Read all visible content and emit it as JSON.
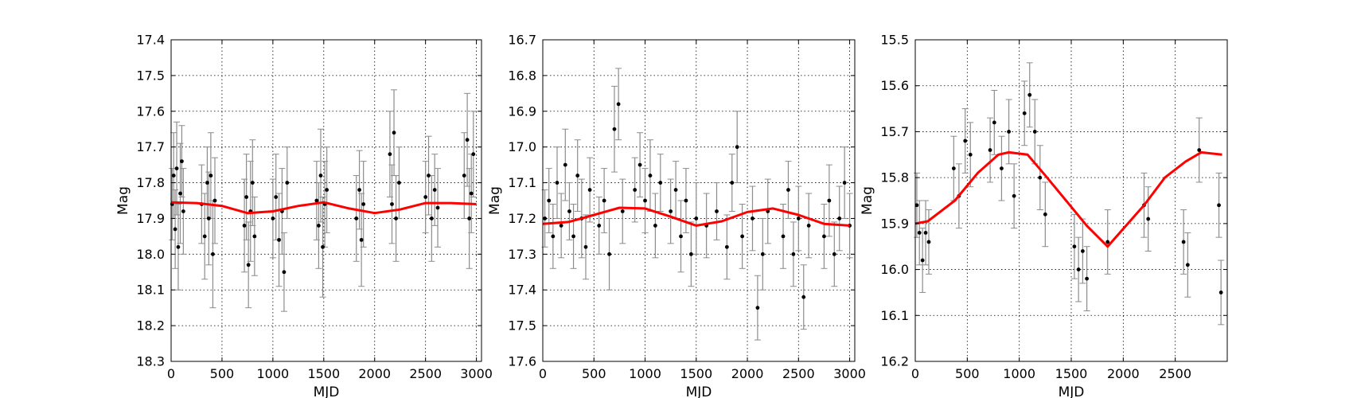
{
  "chart_data": [
    {
      "type": "scatter",
      "xlabel": "MJD",
      "ylabel": "Mag",
      "xlim": [
        0,
        3050
      ],
      "ylim": [
        18.3,
        17.4
      ],
      "y_inverted": true,
      "grid": true,
      "xticks": [
        0,
        500,
        1000,
        1500,
        2000,
        2500,
        3000
      ],
      "xtick_labels": [
        "0",
        "500",
        "1000",
        "1500",
        "2000",
        "2500",
        "3000"
      ],
      "yticks": [
        17.4,
        17.5,
        17.6,
        17.7,
        17.8,
        17.9,
        18.0,
        18.1,
        18.2,
        18.3
      ],
      "ytick_labels": [
        "17.4",
        "17.5",
        "17.6",
        "17.7",
        "17.8",
        "17.9",
        "18.0",
        "18.1",
        "18.2",
        "18.3"
      ],
      "points": [
        [
          10,
          17.86,
          0.1
        ],
        [
          25,
          17.78,
          0.12
        ],
        [
          40,
          17.93,
          0.11
        ],
        [
          55,
          17.76,
          0.13
        ],
        [
          70,
          17.98,
          0.12
        ],
        [
          90,
          17.83,
          0.14
        ],
        [
          105,
          17.74,
          0.1
        ],
        [
          120,
          17.88,
          0.12
        ],
        [
          300,
          17.86,
          0.11
        ],
        [
          330,
          17.95,
          0.12
        ],
        [
          355,
          17.8,
          0.1
        ],
        [
          370,
          17.9,
          0.13
        ],
        [
          390,
          17.78,
          0.12
        ],
        [
          410,
          18.0,
          0.15
        ],
        [
          430,
          17.85,
          0.12
        ],
        [
          720,
          17.92,
          0.13
        ],
        [
          740,
          17.84,
          0.12
        ],
        [
          760,
          18.03,
          0.12
        ],
        [
          780,
          17.88,
          0.14
        ],
        [
          800,
          17.8,
          0.12
        ],
        [
          820,
          17.95,
          0.11
        ],
        [
          1000,
          17.9,
          0.11
        ],
        [
          1030,
          17.84,
          0.12
        ],
        [
          1060,
          17.96,
          0.13
        ],
        [
          1090,
          17.88,
          0.12
        ],
        [
          1110,
          18.05,
          0.11
        ],
        [
          1140,
          17.8,
          0.1
        ],
        [
          1430,
          17.85,
          0.11
        ],
        [
          1450,
          17.92,
          0.12
        ],
        [
          1470,
          17.78,
          0.13
        ],
        [
          1490,
          17.98,
          0.14
        ],
        [
          1510,
          17.86,
          0.12
        ],
        [
          1530,
          17.82,
          0.12
        ],
        [
          1820,
          17.9,
          0.12
        ],
        [
          1850,
          17.82,
          0.11
        ],
        [
          1870,
          17.96,
          0.13
        ],
        [
          1890,
          17.86,
          0.12
        ],
        [
          2150,
          17.72,
          0.12
        ],
        [
          2170,
          17.86,
          0.11
        ],
        [
          2190,
          17.66,
          0.12
        ],
        [
          2210,
          17.9,
          0.12
        ],
        [
          2240,
          17.8,
          0.1
        ],
        [
          2500,
          17.84,
          0.1
        ],
        [
          2530,
          17.78,
          0.11
        ],
        [
          2560,
          17.9,
          0.12
        ],
        [
          2590,
          17.82,
          0.1
        ],
        [
          2620,
          17.87,
          0.11
        ],
        [
          2880,
          17.78,
          0.12
        ],
        [
          2910,
          17.68,
          0.13
        ],
        [
          2930,
          17.9,
          0.14
        ],
        [
          2950,
          17.83,
          0.11
        ],
        [
          2970,
          17.72,
          0.12
        ]
      ],
      "model_x": [
        0,
        250,
        500,
        750,
        1000,
        1250,
        1500,
        1750,
        2000,
        2250,
        2500,
        2750,
        3000
      ],
      "model_y": [
        17.855,
        17.857,
        17.865,
        17.885,
        17.88,
        17.865,
        17.855,
        17.872,
        17.885,
        17.875,
        17.857,
        17.857,
        17.86
      ]
    },
    {
      "type": "scatter",
      "xlabel": "MJD",
      "ylabel": "Mag",
      "xlim": [
        0,
        3050
      ],
      "ylim": [
        17.6,
        16.7
      ],
      "y_inverted": true,
      "grid": true,
      "xticks": [
        0,
        500,
        1000,
        1500,
        2000,
        2500,
        3000
      ],
      "xtick_labels": [
        "0",
        "500",
        "1000",
        "1500",
        "2000",
        "2500",
        "3000"
      ],
      "yticks": [
        16.7,
        16.8,
        16.9,
        17.0,
        17.1,
        17.2,
        17.3,
        17.4,
        17.5,
        17.6
      ],
      "ytick_labels": [
        "16.7",
        "16.8",
        "16.9",
        "17.0",
        "17.1",
        "17.2",
        "17.3",
        "17.4",
        "17.5",
        "17.6"
      ],
      "points": [
        [
          20,
          17.2,
          0.08
        ],
        [
          60,
          17.15,
          0.09
        ],
        [
          100,
          17.25,
          0.09
        ],
        [
          140,
          17.1,
          0.1
        ],
        [
          180,
          17.22,
          0.09
        ],
        [
          220,
          17.05,
          0.1
        ],
        [
          260,
          17.18,
          0.08
        ],
        [
          300,
          17.25,
          0.09
        ],
        [
          340,
          17.08,
          0.1
        ],
        [
          380,
          17.2,
          0.11
        ],
        [
          420,
          17.28,
          0.09
        ],
        [
          460,
          17.12,
          0.09
        ],
        [
          550,
          17.22,
          0.08
        ],
        [
          600,
          17.15,
          0.09
        ],
        [
          650,
          17.3,
          0.1
        ],
        [
          700,
          16.95,
          0.12
        ],
        [
          740,
          16.88,
          0.1
        ],
        [
          780,
          17.18,
          0.09
        ],
        [
          900,
          17.12,
          0.09
        ],
        [
          950,
          17.05,
          0.09
        ],
        [
          1000,
          17.15,
          0.09
        ],
        [
          1050,
          17.08,
          0.1
        ],
        [
          1100,
          17.22,
          0.09
        ],
        [
          1150,
          17.1,
          0.08
        ],
        [
          1250,
          17.18,
          0.09
        ],
        [
          1300,
          17.12,
          0.08
        ],
        [
          1350,
          17.25,
          0.1
        ],
        [
          1400,
          17.15,
          0.09
        ],
        [
          1450,
          17.3,
          0.09
        ],
        [
          1500,
          17.2,
          0.1
        ],
        [
          1600,
          17.22,
          0.09
        ],
        [
          1700,
          17.18,
          0.08
        ],
        [
          1800,
          17.28,
          0.09
        ],
        [
          1850,
          17.1,
          0.08
        ],
        [
          1900,
          17.0,
          0.1
        ],
        [
          1950,
          17.25,
          0.09
        ],
        [
          2050,
          17.2,
          0.09
        ],
        [
          2100,
          17.45,
          0.09
        ],
        [
          2150,
          17.3,
          0.1
        ],
        [
          2200,
          17.18,
          0.09
        ],
        [
          2350,
          17.25,
          0.09
        ],
        [
          2400,
          17.12,
          0.08
        ],
        [
          2450,
          17.3,
          0.09
        ],
        [
          2500,
          17.2,
          0.09
        ],
        [
          2550,
          17.42,
          0.09
        ],
        [
          2600,
          17.22,
          0.09
        ],
        [
          2750,
          17.25,
          0.09
        ],
        [
          2800,
          17.15,
          0.1
        ],
        [
          2850,
          17.3,
          0.09
        ],
        [
          2900,
          17.2,
          0.09
        ],
        [
          2950,
          17.1,
          0.1
        ],
        [
          3000,
          17.22,
          0.09
        ]
      ],
      "model_x": [
        0,
        250,
        500,
        750,
        1000,
        1250,
        1500,
        1750,
        2000,
        2250,
        2500,
        2750,
        3000
      ],
      "model_y": [
        17.215,
        17.21,
        17.19,
        17.17,
        17.172,
        17.195,
        17.22,
        17.208,
        17.182,
        17.172,
        17.19,
        17.215,
        17.22
      ]
    },
    {
      "type": "scatter",
      "xlabel": "MJD",
      "ylabel": "Mag",
      "xlim": [
        0,
        3000
      ],
      "ylim": [
        16.2,
        15.5
      ],
      "y_inverted": true,
      "grid": true,
      "xticks": [
        0,
        500,
        1000,
        1500,
        2000,
        2500
      ],
      "xtick_labels": [
        "0",
        "500",
        "1000",
        "1500",
        "2000",
        "2500"
      ],
      "yticks": [
        15.5,
        15.6,
        15.7,
        15.8,
        15.9,
        16.0,
        16.1,
        16.2
      ],
      "ytick_labels": [
        "15.5",
        "15.6",
        "15.7",
        "15.8",
        "15.9",
        "16.0",
        "16.1",
        "16.2"
      ],
      "points": [
        [
          15,
          15.86,
          0.07
        ],
        [
          40,
          15.92,
          0.07
        ],
        [
          70,
          15.98,
          0.07
        ],
        [
          100,
          15.92,
          0.07
        ],
        [
          130,
          15.94,
          0.07
        ],
        [
          370,
          15.78,
          0.07
        ],
        [
          420,
          15.84,
          0.07
        ],
        [
          480,
          15.72,
          0.07
        ],
        [
          530,
          15.75,
          0.07
        ],
        [
          720,
          15.74,
          0.07
        ],
        [
          760,
          15.68,
          0.07
        ],
        [
          830,
          15.78,
          0.07
        ],
        [
          900,
          15.7,
          0.07
        ],
        [
          950,
          15.84,
          0.07
        ],
        [
          1050,
          15.66,
          0.07
        ],
        [
          1100,
          15.62,
          0.07
        ],
        [
          1150,
          15.7,
          0.07
        ],
        [
          1200,
          15.8,
          0.07
        ],
        [
          1250,
          15.88,
          0.07
        ],
        [
          1530,
          15.95,
          0.07
        ],
        [
          1570,
          16.0,
          0.07
        ],
        [
          1610,
          15.96,
          0.07
        ],
        [
          1650,
          16.02,
          0.07
        ],
        [
          1850,
          15.94,
          0.07
        ],
        [
          2200,
          15.86,
          0.07
        ],
        [
          2240,
          15.89,
          0.07
        ],
        [
          2580,
          15.94,
          0.07
        ],
        [
          2620,
          15.99,
          0.07
        ],
        [
          2730,
          15.74,
          0.07
        ],
        [
          2920,
          15.86,
          0.07
        ],
        [
          2940,
          16.05,
          0.07
        ]
      ],
      "model_x": [
        0,
        120,
        380,
        600,
        800,
        900,
        1080,
        1250,
        1450,
        1650,
        1850,
        2200,
        2400,
        2600,
        2750,
        2950
      ],
      "model_y": [
        15.9,
        15.895,
        15.85,
        15.79,
        15.75,
        15.745,
        15.75,
        15.795,
        15.85,
        15.905,
        15.95,
        15.86,
        15.8,
        15.765,
        15.745,
        15.75
      ]
    }
  ]
}
